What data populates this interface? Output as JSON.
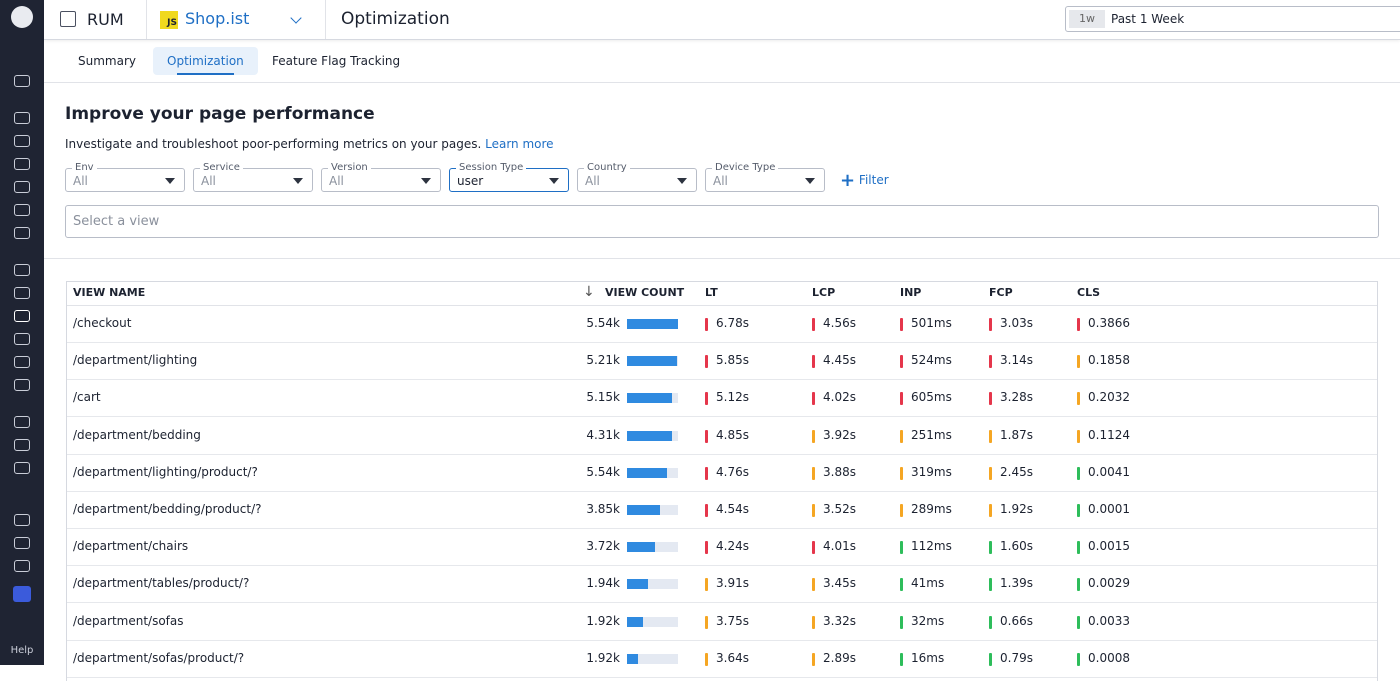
{
  "sidebar": {
    "help": "Help"
  },
  "header": {
    "product": "RUM",
    "app_badge": "JS",
    "app": "Shop.ist",
    "page": "Optimization",
    "time_short": "1w",
    "time_range": "Past 1 Week"
  },
  "tabs": [
    "Summary",
    "Optimization",
    "Feature Flag Tracking"
  ],
  "selected_tab": 1,
  "heading": "Improve your page performance",
  "description": "Investigate and troubleshoot poor-performing metrics on your pages.",
  "link": "Learn more",
  "filters": [
    {
      "label": "Env",
      "value": "All"
    },
    {
      "label": "Service",
      "value": "All"
    },
    {
      "label": "Version",
      "value": "All"
    },
    {
      "label": "Session Type",
      "value": "user",
      "active": true
    },
    {
      "label": "Country",
      "value": "All"
    },
    {
      "label": "Device Type",
      "value": "All"
    }
  ],
  "add_filter": "Filter",
  "search_placeholder": "Select a view",
  "table": {
    "columns": [
      "VIEW NAME",
      "VIEW COUNT",
      "LT",
      "LCP",
      "INP",
      "FCP",
      "CLS"
    ],
    "rows": [
      {
        "cells": [
          "/checkout",
          "5.54k",
          "6.78s",
          "4.56s",
          "501ms",
          "3.03s",
          "0.3866"
        ],
        "view_share": 100,
        "status": [
          "#e5364b",
          "#e5364b",
          "#e5364b",
          "#e5364b",
          "#e5364b"
        ]
      },
      {
        "cells": [
          "/department/lighting",
          "5.21k",
          "5.85s",
          "4.45s",
          "524ms",
          "3.14s",
          "0.1858"
        ],
        "view_share": 98,
        "status": [
          "#e5364b",
          "#e5364b",
          "#e5364b",
          "#e5364b",
          "#f5a623"
        ]
      },
      {
        "cells": [
          "/cart",
          "5.15k",
          "5.12s",
          "4.02s",
          "605ms",
          "3.28s",
          "0.2032"
        ],
        "view_share": 88,
        "status": [
          "#e5364b",
          "#e5364b",
          "#e5364b",
          "#e5364b",
          "#f5a623"
        ]
      },
      {
        "cells": [
          "/department/bedding",
          "4.31k",
          "4.85s",
          "3.92s",
          "251ms",
          "1.87s",
          "0.1124"
        ],
        "view_share": 88,
        "status": [
          "#e5364b",
          "#f5a623",
          "#f5a623",
          "#f5a623",
          "#f5a623"
        ]
      },
      {
        "cells": [
          "/department/lighting/product/?",
          "5.54k",
          "4.76s",
          "3.88s",
          "319ms",
          "2.45s",
          "0.0041"
        ],
        "view_share": 78,
        "status": [
          "#e5364b",
          "#f5a623",
          "#f5a623",
          "#f5a623",
          "#2ebd5b"
        ]
      },
      {
        "cells": [
          "/department/bedding/product/?",
          "3.85k",
          "4.54s",
          "3.52s",
          "289ms",
          "1.92s",
          "0.0001"
        ],
        "view_share": 65,
        "status": [
          "#e5364b",
          "#f5a623",
          "#f5a623",
          "#f5a623",
          "#2ebd5b"
        ]
      },
      {
        "cells": [
          "/department/chairs",
          "3.72k",
          "4.24s",
          "4.01s",
          "112ms",
          "1.60s",
          "0.0015"
        ],
        "view_share": 55,
        "status": [
          "#e5364b",
          "#e5364b",
          "#2ebd5b",
          "#2ebd5b",
          "#2ebd5b"
        ]
      },
      {
        "cells": [
          "/department/tables/product/?",
          "1.94k",
          "3.91s",
          "3.45s",
          "41ms",
          "1.39s",
          "0.0029"
        ],
        "view_share": 42,
        "status": [
          "#f5a623",
          "#f5a623",
          "#2ebd5b",
          "#2ebd5b",
          "#2ebd5b"
        ]
      },
      {
        "cells": [
          "/department/sofas",
          "1.92k",
          "3.75s",
          "3.32s",
          "32ms",
          "0.66s",
          "0.0033"
        ],
        "view_share": 32,
        "status": [
          "#f5a623",
          "#f5a623",
          "#2ebd5b",
          "#2ebd5b",
          "#2ebd5b"
        ]
      },
      {
        "cells": [
          "/department/sofas/product/?",
          "1.92k",
          "3.64s",
          "2.89s",
          "16ms",
          "0.79s",
          "0.0008"
        ],
        "view_share": 22,
        "status": [
          "#f5a623",
          "#f5a623",
          "#2ebd5b",
          "#2ebd5b",
          "#2ebd5b"
        ]
      }
    ]
  }
}
